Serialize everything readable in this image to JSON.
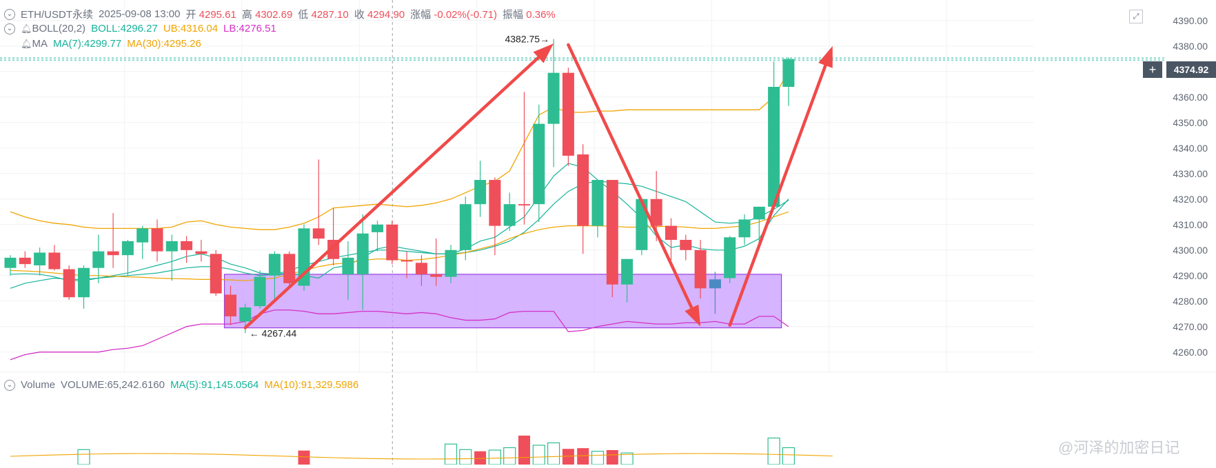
{
  "header": {
    "symbol": "ETH/USDT永续",
    "datetime": "2025-09-08 13:00",
    "open_label": "开",
    "open": "4295.61",
    "high_label": "高",
    "high": "4302.69",
    "low_label": "低",
    "low": "4287.10",
    "close_label": "收",
    "close": "4294.90",
    "change_label": "涨幅",
    "change": "-0.02%(-0.71)",
    "amp_label": "振幅",
    "amp": "0.36%"
  },
  "boll_line": {
    "name": "BOLL(20,2)",
    "mid": "BOLL:4296.27",
    "ub": "UB:4316.04",
    "lb": "LB:4276.51"
  },
  "ma_line": {
    "name": "MA",
    "ma7": "MA(7):4299.77",
    "ma30": "MA(30):4295.26"
  },
  "volume_line": {
    "name": "Volume",
    "vol": "VOLUME:65,242.6160",
    "ma5": "MA(5):91,145.0564",
    "ma10": "MA(10):91,329.5986"
  },
  "price_tag": "4374.92",
  "watermark": "@河泽的加密日记",
  "colors": {
    "up": "#2ebd92",
    "down": "#ef4f5a",
    "ma7": "#16b39a",
    "ma30": "#f0a400",
    "bb_upper": "#f0a400",
    "bb_lower": "#d431c5",
    "bb_mid": "#16b39a",
    "arrow": "#f04a4a",
    "zone": "#c89bff",
    "current": "#4a8ac2"
  },
  "chart_data": {
    "type": "candlestick",
    "ylim": [
      4254,
      4394
    ],
    "ytick_labels": [
      "4390.00",
      "4380.00",
      "4370.00",
      "4360.00",
      "4350.00",
      "4340.00",
      "4330.00",
      "4320.00",
      "4310.00",
      "4300.00",
      "4290.00",
      "4280.00",
      "4270.00",
      "4260.00"
    ],
    "candles": [
      {
        "o": 4293.0,
        "h": 4298.0,
        "l": 4290.0,
        "c": 4297.0
      },
      {
        "o": 4297.0,
        "h": 4299.5,
        "l": 4293.0,
        "c": 4294.5
      },
      {
        "o": 4294.0,
        "h": 4301.0,
        "l": 4290.0,
        "c": 4299.0
      },
      {
        "o": 4299.0,
        "h": 4302.0,
        "l": 4292.0,
        "c": 4292.5
      },
      {
        "o": 4292.5,
        "h": 4294.0,
        "l": 4280.5,
        "c": 4281.5
      },
      {
        "o": 4281.5,
        "h": 4294.0,
        "l": 4277.0,
        "c": 4293.0
      },
      {
        "o": 4293.0,
        "h": 4306.0,
        "l": 4287.0,
        "c": 4299.5
      },
      {
        "o": 4299.5,
        "h": 4314.5,
        "l": 4293.0,
        "c": 4298.0
      },
      {
        "o": 4298.0,
        "h": 4304.0,
        "l": 4290.0,
        "c": 4303.5
      },
      {
        "o": 4303.0,
        "h": 4309.5,
        "l": 4296.5,
        "c": 4308.5
      },
      {
        "o": 4308.5,
        "h": 4312.0,
        "l": 4295.5,
        "c": 4299.5
      },
      {
        "o": 4299.5,
        "h": 4306.0,
        "l": 4288.0,
        "c": 4303.5
      },
      {
        "o": 4303.5,
        "h": 4305.5,
        "l": 4295.0,
        "c": 4300.0
      },
      {
        "o": 4299.5,
        "h": 4304.0,
        "l": 4295.5,
        "c": 4298.5
      },
      {
        "o": 4298.5,
        "h": 4300.0,
        "l": 4282.0,
        "c": 4283.0
      },
      {
        "o": 4282.5,
        "h": 4286.0,
        "l": 4270.5,
        "c": 4274.0
      },
      {
        "o": 4272.0,
        "h": 4279.0,
        "l": 4267.44,
        "c": 4277.5
      },
      {
        "o": 4278.0,
        "h": 4292.0,
        "l": 4277.0,
        "c": 4289.5
      },
      {
        "o": 4290.0,
        "h": 4299.5,
        "l": 4279.5,
        "c": 4298.5
      },
      {
        "o": 4298.5,
        "h": 4299.5,
        "l": 4285.5,
        "c": 4287.0
      },
      {
        "o": 4286.0,
        "h": 4310.0,
        "l": 4284.0,
        "c": 4308.5
      },
      {
        "o": 4308.5,
        "h": 4335.5,
        "l": 4302.0,
        "c": 4304.5
      },
      {
        "o": 4304.0,
        "h": 4316.5,
        "l": 4294.0,
        "c": 4296.5
      },
      {
        "o": 4290.5,
        "h": 4303.5,
        "l": 4280.5,
        "c": 4297.0
      },
      {
        "o": 4290.5,
        "h": 4314.0,
        "l": 4276.5,
        "c": 4306.5
      },
      {
        "o": 4307.0,
        "h": 4311.5,
        "l": 4299.5,
        "c": 4310.0
      },
      {
        "o": 4310.0,
        "h": 4311.5,
        "l": 4294.5,
        "c": 4296.0
      },
      {
        "o": 4296.0,
        "h": 4299.5,
        "l": 4289.0,
        "c": 4295.5
      },
      {
        "o": 4295.0,
        "h": 4298.0,
        "l": 4286.0,
        "c": 4290.5
      },
      {
        "o": 4290.5,
        "h": 4304.5,
        "l": 4286.0,
        "c": 4289.5
      },
      {
        "o": 4289.5,
        "h": 4302.0,
        "l": 4287.0,
        "c": 4300.0
      },
      {
        "o": 4300.0,
        "h": 4321.0,
        "l": 4296.0,
        "c": 4318.0
      },
      {
        "o": 4318.0,
        "h": 4335.0,
        "l": 4313.0,
        "c": 4327.5
      },
      {
        "o": 4327.5,
        "h": 4328.5,
        "l": 4298.0,
        "c": 4309.5
      },
      {
        "o": 4309.5,
        "h": 4322.5,
        "l": 4307.5,
        "c": 4318.0
      },
      {
        "o": 4318.0,
        "h": 4362.0,
        "l": 4310.0,
        "c": 4317.5
      },
      {
        "o": 4318.0,
        "h": 4357.0,
        "l": 4311.0,
        "c": 4349.5
      },
      {
        "o": 4349.5,
        "h": 4382.75,
        "l": 4332.5,
        "c": 4369.5
      },
      {
        "o": 4369.5,
        "h": 4371.5,
        "l": 4333.0,
        "c": 4337.0
      },
      {
        "o": 4337.5,
        "h": 4341.5,
        "l": 4298.5,
        "c": 4309.5
      },
      {
        "o": 4309.5,
        "h": 4327.5,
        "l": 4305.0,
        "c": 4327.5
      },
      {
        "o": 4327.5,
        "h": 4327.5,
        "l": 4281.5,
        "c": 4286.5
      },
      {
        "o": 4286.5,
        "h": 4296.5,
        "l": 4279.5,
        "c": 4296.5
      },
      {
        "o": 4300.0,
        "h": 4320.5,
        "l": 4298.0,
        "c": 4320.0
      },
      {
        "o": 4320.0,
        "h": 4331.0,
        "l": 4303.5,
        "c": 4309.5
      },
      {
        "o": 4309.5,
        "h": 4312.5,
        "l": 4296.0,
        "c": 4304.0
      },
      {
        "o": 4304.0,
        "h": 4306.0,
        "l": 4296.0,
        "c": 4300.0
      },
      {
        "o": 4300.0,
        "h": 4304.0,
        "l": 4281.0,
        "c": 4285.0
      },
      {
        "o": 4285.0,
        "h": 4291.5,
        "l": 4275.0,
        "c": 4288.5
      },
      {
        "o": 4289.0,
        "h": 4305.5,
        "l": 4287.0,
        "c": 4305.0
      },
      {
        "o": 4305.0,
        "h": 4314.0,
        "l": 4302.0,
        "c": 4312.0
      },
      {
        "o": 4312.0,
        "h": 4317.0,
        "l": 4300.5,
        "c": 4317.0
      },
      {
        "o": 4317.0,
        "h": 4374.0,
        "l": 4316.0,
        "c": 4364.0
      },
      {
        "o": 4364.0,
        "h": 4375.5,
        "l": 4356.5,
        "c": 4374.92
      }
    ],
    "ma7": [
      4290.5,
      4290.7,
      4290.5,
      4289.5,
      4288.0,
      4288.0,
      4289.0,
      4290.0,
      4291.0,
      4292.5,
      4294.0,
      4295.5,
      4297.5,
      4298.5,
      4297.0,
      4294.5,
      4293.0,
      4291.0,
      4290.5,
      4291.0,
      4290.0,
      4289.0,
      4293.0,
      4294.0,
      4297.0,
      4300.5,
      4301.5,
      4300.5,
      4299.5,
      4298.5,
      4298.5,
      4300.5,
      4303.5,
      4305.0,
      4309.0,
      4313.0,
      4321.0,
      4329.0,
      4334.0,
      4332.5,
      4327.5,
      4323.0,
      4318.0,
      4312.5,
      4305.5,
      4301.0,
      4302.0,
      4300.5,
      4300.0,
      4300.0,
      4301.5,
      4304.5,
      4313.5,
      4320.0
    ],
    "ma30": [
      4292.0,
      4291.8,
      4291.5,
      4291.0,
      4290.5,
      4290.0,
      4290.0,
      4289.7,
      4289.5,
      4289.3,
      4289.0,
      4288.8,
      4288.7,
      4288.5,
      4288.5,
      4288.3,
      4288.0,
      4288.5,
      4289.0,
      4290.5,
      4292.0,
      4293.5,
      4294.5,
      4295.0,
      4296.0,
      4296.5,
      4296.5,
      4296.0,
      4296.3,
      4297.0,
      4298.0,
      4299.0,
      4300.5,
      4302.0,
      4304.5,
      4306.5,
      4308.0,
      4309.0,
      4309.5,
      4309.5,
      4309.5,
      4309.3,
      4309.0,
      4309.0,
      4309.2,
      4309.3,
      4309.0,
      4308.5,
      4308.5,
      4309.0,
      4309.5,
      4311.0,
      4313.0,
      4315.0
    ],
    "bb_upper": [
      4315.0,
      4313.0,
      4311.5,
      4310.5,
      4310.0,
      4309.0,
      4308.5,
      4308.5,
      4308.5,
      4308.5,
      4308.5,
      4309.0,
      4311.0,
      4311.5,
      4310.0,
      4309.0,
      4308.5,
      4308.0,
      4308.0,
      4309.0,
      4310.5,
      4313.0,
      4316.5,
      4317.0,
      4317.5,
      4318.0,
      4317.5,
      4317.0,
      4317.5,
      4318.5,
      4320.0,
      4322.5,
      4325.0,
      4327.0,
      4331.0,
      4342.0,
      4353.0,
      4356.0,
      4354.0,
      4354.0,
      4354.5,
      4354.5,
      4355.0,
      4355.0,
      4355.0,
      4355.0,
      4355.0,
      4355.0,
      4355.0,
      4355.0,
      4355.0,
      4355.0,
      4360.0,
      4370.0
    ],
    "bb_mid": [
      4285.0,
      4287.0,
      4288.0,
      4289.0,
      4288.5,
      4288.5,
      4289.0,
      4289.5,
      4290.0,
      4290.5,
      4291.0,
      4292.0,
      4293.0,
      4293.5,
      4293.5,
      4292.5,
      4291.0,
      4290.0,
      4290.5,
      4292.0,
      4294.0,
      4295.5,
      4297.0,
      4298.0,
      4299.0,
      4300.0,
      4300.0,
      4299.5,
      4299.0,
      4298.5,
      4298.5,
      4299.0,
      4300.0,
      4301.5,
      4303.5,
      4307.0,
      4312.0,
      4318.0,
      4323.0,
      4326.0,
      4327.0,
      4326.5,
      4326.0,
      4325.0,
      4323.0,
      4321.0,
      4319.0,
      4315.0,
      4311.0,
      4310.5,
      4311.0,
      4313.0,
      4316.0,
      4319.5
    ],
    "bb_lower": [
      4257.0,
      4259.0,
      4260.0,
      4260.0,
      4260.0,
      4260.0,
      4260.0,
      4261.0,
      4261.5,
      4262.5,
      4265.0,
      4267.5,
      4270.0,
      4271.0,
      4271.0,
      4271.0,
      4272.0,
      4275.0,
      4276.5,
      4276.5,
      4276.0,
      4275.0,
      4275.0,
      4275.5,
      4276.0,
      4276.0,
      4275.5,
      4275.0,
      4275.5,
      4275.0,
      4273.5,
      4272.5,
      4272.5,
      4273.0,
      4275.5,
      4276.0,
      4276.0,
      4276.0,
      4268.0,
      4268.5,
      4270.0,
      4271.0,
      4272.0,
      4271.5,
      4271.0,
      4271.0,
      4271.5,
      4271.5,
      4272.0,
      4271.0,
      4271.0,
      4274.0,
      4274.0,
      4270.0
    ],
    "zone": {
      "from_index": 15,
      "to_index": 52,
      "y_top": 4290.5,
      "y_bottom": 4269.5
    },
    "current_index": 48,
    "current_price": 4374.92,
    "crosshair_index": 26,
    "annotations": {
      "high": "4382.75",
      "low": "4267.44",
      "high_index": 37,
      "low_index": 16
    },
    "arrows": [
      {
        "from": [
          16,
          4269.5
        ],
        "to": [
          37,
          4381.0
        ]
      },
      {
        "from": [
          38,
          4380.5
        ],
        "to": [
          47,
          4270.0
        ]
      },
      {
        "from": [
          49,
          4270.5
        ],
        "to": [
          56,
          4380.0
        ]
      }
    ],
    "volume": [
      {
        "i": 5,
        "v": 62,
        "up": true
      },
      {
        "i": 20,
        "v": 58,
        "up": false
      },
      {
        "i": 30,
        "v": 85,
        "up": true
      },
      {
        "i": 31,
        "v": 62,
        "up": true
      },
      {
        "i": 32,
        "v": 55,
        "up": false
      },
      {
        "i": 33,
        "v": 60,
        "up": true
      },
      {
        "i": 34,
        "v": 70,
        "up": true
      },
      {
        "i": 35,
        "v": 120,
        "up": false
      },
      {
        "i": 36,
        "v": 80,
        "up": true
      },
      {
        "i": 37,
        "v": 90,
        "up": true
      },
      {
        "i": 38,
        "v": 65,
        "up": false
      },
      {
        "i": 39,
        "v": 68,
        "up": false
      },
      {
        "i": 40,
        "v": 55,
        "up": true
      },
      {
        "i": 41,
        "v": 60,
        "up": false
      },
      {
        "i": 42,
        "v": 48,
        "up": true
      },
      {
        "i": 52,
        "v": 110,
        "up": true
      },
      {
        "i": 53,
        "v": 70,
        "up": true
      }
    ]
  }
}
